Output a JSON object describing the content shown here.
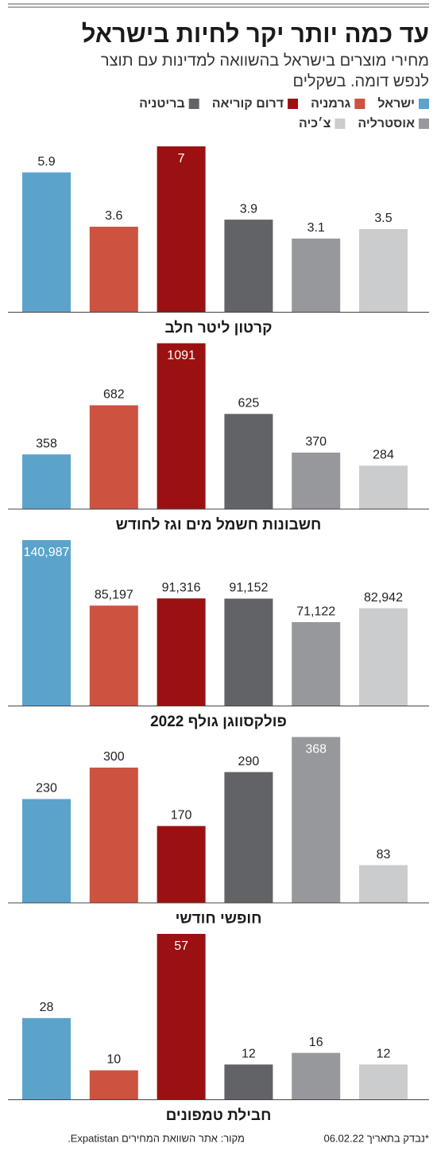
{
  "header": {
    "title": "עד כמה יותר יקר לחיות בישראל",
    "subtitle": [
      "מחירי מוצרים בישראל בהשוואה למדינות עם תוצר",
      "לנפש דומה. בשקלים"
    ]
  },
  "legend": [
    {
      "name": "ישראל",
      "color": "#5ba3cb"
    },
    {
      "name": "גרמניה",
      "color": "#cd5240"
    },
    {
      "name": "דרום קוריאה",
      "color": "#9b1111"
    },
    {
      "name": "בריטניה",
      "color": "#626366"
    },
    {
      "name": "אוסטרליה",
      "color": "#97989b"
    },
    {
      "name": "צ׳כיה",
      "color": "#cbcccd"
    }
  ],
  "chart_data": [
    {
      "type": "bar",
      "title": "קרטון ליטר חלב",
      "values": [
        5.9,
        3.6,
        7,
        3.9,
        3.1,
        3.5
      ]
    },
    {
      "type": "bar",
      "title": "חשבונות חשמל מים וגז לחודש",
      "values": [
        358,
        682,
        1091,
        625,
        370,
        284
      ]
    },
    {
      "type": "bar",
      "title": "פולקסווגן גולף 2022",
      "values": [
        140987,
        85197,
        91316,
        91152,
        71122,
        82942
      ],
      "value_labels": [
        "140,987",
        "85,197",
        "91,316",
        "91,152",
        "71,122",
        "82,942"
      ]
    },
    {
      "type": "bar",
      "title": "חופשי חודשי",
      "values": [
        230,
        300,
        170,
        290,
        368,
        83
      ]
    },
    {
      "type": "bar",
      "title": "חבילת טמפונים",
      "values": [
        28,
        10,
        57,
        12,
        16,
        12
      ]
    }
  ],
  "footer": {
    "note": "*נבדק בתאריך 06.02.22",
    "source": "מקור: אתר השוואת המחירים Expatistan."
  }
}
